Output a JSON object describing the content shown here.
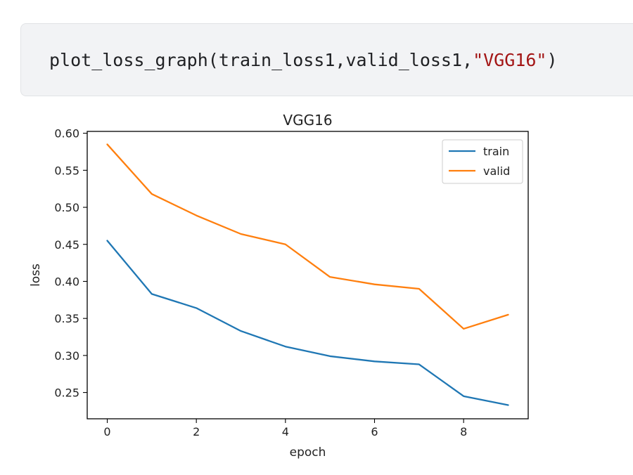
{
  "cell": {
    "code": {
      "fn": "plot_loss_graph",
      "open": "(",
      "args": "train_loss1,valid_loss1,",
      "str": "\"VGG16\"",
      "close": ")"
    }
  },
  "chart_data": {
    "type": "line",
    "title": "VGG16",
    "xlabel": "epoch",
    "ylabel": "loss",
    "x": [
      0,
      1,
      2,
      3,
      4,
      5,
      6,
      7,
      8,
      9
    ],
    "xticks": [
      0,
      2,
      4,
      6,
      8
    ],
    "xtick_labels": [
      "0",
      "2",
      "4",
      "6",
      "8"
    ],
    "yticks": [
      0.25,
      0.3,
      0.35,
      0.4,
      0.45,
      0.5,
      0.55,
      0.6
    ],
    "ytick_labels": [
      "0.25",
      "0.30",
      "0.35",
      "0.40",
      "0.45",
      "0.50",
      "0.55",
      "0.60"
    ],
    "xlim": [
      -0.45,
      9.45
    ],
    "ylim": [
      0.2145,
      0.6025
    ],
    "grid": false,
    "legend": "top-right",
    "series": [
      {
        "name": "train",
        "color": "#1f77b4",
        "values": [
          0.455,
          0.383,
          0.364,
          0.333,
          0.312,
          0.299,
          0.292,
          0.288,
          0.245,
          0.233
        ]
      },
      {
        "name": "valid",
        "color": "#ff7f0e",
        "values": [
          0.585,
          0.518,
          0.489,
          0.464,
          0.45,
          0.406,
          0.396,
          0.39,
          0.336,
          0.355
        ]
      }
    ]
  }
}
